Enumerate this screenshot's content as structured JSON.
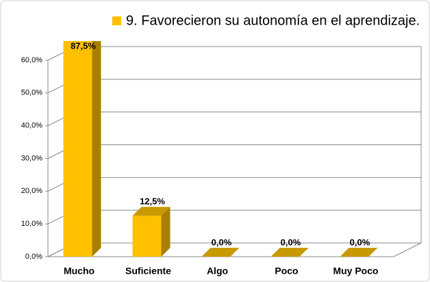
{
  "chart_data": {
    "type": "bar3d",
    "series": [
      {
        "name": "9. Favorecieron su autonomía en el aprendizaje.",
        "color": "#FFC000",
        "values": [
          87.5,
          12.5,
          0,
          0,
          0
        ],
        "value_labels": [
          "87,5%",
          "12,5%",
          "0,0%",
          "0,0%",
          "0,0%"
        ]
      }
    ],
    "categories": [
      "Mucho",
      "Suficiente",
      "Algo",
      "Poco",
      "Muy Poco"
    ],
    "ylim": [
      0,
      60
    ],
    "yticks": [
      {
        "value": 0,
        "label": "0,0%"
      },
      {
        "value": 10,
        "label": "10,0%"
      },
      {
        "value": 20,
        "label": "20,0%"
      },
      {
        "value": 30,
        "label": "30,0%"
      },
      {
        "value": 40,
        "label": "40,0%"
      },
      {
        "value": 50,
        "label": "50,0%"
      },
      {
        "value": 60,
        "label": "60,0%"
      }
    ],
    "grid": true,
    "legend": "top"
  }
}
